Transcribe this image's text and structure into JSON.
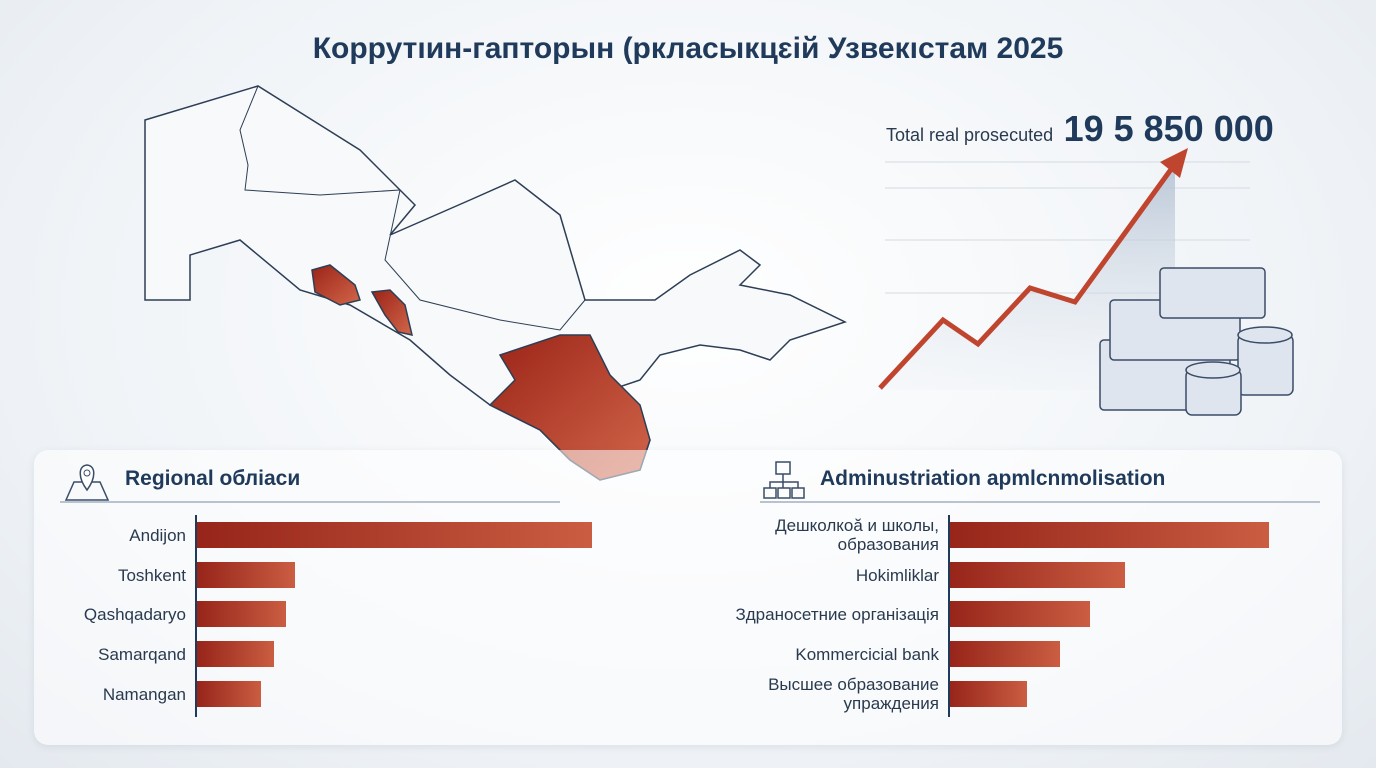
{
  "title": "Коррутıин-гапторын (ркласыкцɛій Узвекıстам 2025",
  "total": {
    "label": "Total real prosecuted",
    "value": "19 5 850 000"
  },
  "chart_data": [
    {
      "type": "bar",
      "title": "Regional обліаси",
      "categories": [
        "Andijon",
        "Toshkent",
        "Qashqadaryo",
        "Samarqand",
        "Namangan"
      ],
      "values": [
        395,
        98,
        89,
        77,
        64
      ],
      "color": "#b8432f"
    },
    {
      "type": "bar",
      "title": "Adminustriation apmlcnmolisation",
      "categories": [
        "Дешколкоӑ и школы,\nобразования",
        "Hokimliklar",
        "Здраносетние органiзацiя",
        "Kommercicial bank",
        "Высшее образование\nупраждения"
      ],
      "values": [
        319,
        175,
        140,
        110,
        77
      ],
      "color": "#b8432f"
    }
  ]
}
